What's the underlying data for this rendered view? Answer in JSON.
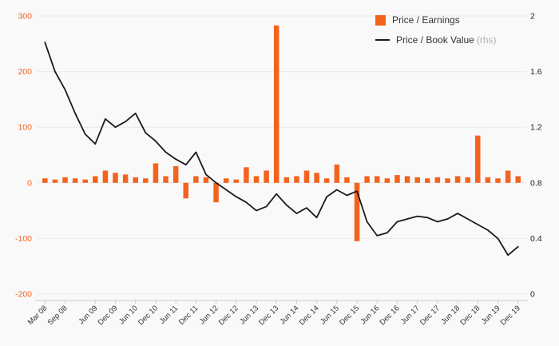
{
  "colors": {
    "bar": "#f4631e",
    "line": "#1a1a1a",
    "grid": "#e9e9e9",
    "axis": "#cccccc",
    "left_tick_text": "#f4631e",
    "right_tick_text": "#222222",
    "x_tick_text": "#333333",
    "background": "#f9f9f9"
  },
  "legend": {
    "pe_label": "Price / Earnings",
    "pb_label": "Price / Book Value",
    "rhs_label": "(rhs)"
  },
  "chart_data": {
    "type": "bar",
    "title": "",
    "xlabel": "",
    "ylabel_left": "",
    "ylabel_right": "",
    "grid": true,
    "legend_position": "top-right",
    "x": [
      "Mar 08",
      "Jun 08",
      "Sep 08",
      "Dec 08",
      "Mar 09",
      "Jun 09",
      "Sep 09",
      "Dec 09",
      "Mar 10",
      "Jun 10",
      "Sep 10",
      "Dec 10",
      "Mar 11",
      "Jun 11",
      "Sep 11",
      "Dec 11",
      "Mar 12",
      "Jun 12",
      "Sep 12",
      "Dec 12",
      "Mar 13",
      "Jun 13",
      "Sep 13",
      "Dec 13",
      "Mar 14",
      "Jun 14",
      "Sep 14",
      "Dec 14",
      "Mar 15",
      "Jun 15",
      "Sep 15",
      "Dec 15",
      "Mar 16",
      "Jun 16",
      "Sep 16",
      "Dec 16",
      "Mar 17",
      "Jun 17",
      "Sep 17",
      "Dec 17",
      "Mar 18",
      "Jun 18",
      "Sep 18",
      "Dec 18",
      "Mar 19",
      "Jun 19",
      "Sep 19",
      "Dec 19"
    ],
    "x_tick_labels": [
      "Mar 08",
      "Sep 08",
      "Jun 09",
      "Dec 09",
      "Jun 10",
      "Dec 10",
      "Jun 11",
      "Dec 11",
      "Jun 12",
      "Dec 12",
      "Jun 13",
      "Dec 13",
      "Jun 14",
      "Dec 14",
      "Jun 15",
      "Dec 15",
      "Jun 16",
      "Dec 16",
      "Jun 17",
      "Dec 17",
      "Jun 18",
      "Dec 18",
      "Jun 19",
      "Dec 19"
    ],
    "x_tick_indices": [
      0,
      2,
      5,
      7,
      9,
      11,
      13,
      15,
      17,
      19,
      21,
      23,
      25,
      27,
      29,
      31,
      33,
      35,
      37,
      39,
      41,
      43,
      45,
      47
    ],
    "series": [
      {
        "name": "Price / Earnings",
        "type": "bar",
        "axis": "left",
        "color": "#f4631e",
        "values": [
          8,
          6,
          10,
          8,
          6,
          12,
          22,
          18,
          15,
          10,
          8,
          35,
          12,
          30,
          -28,
          12,
          10,
          -35,
          8,
          6,
          28,
          12,
          22,
          283,
          10,
          12,
          22,
          18,
          8,
          33,
          10,
          -105,
          12,
          12,
          8,
          14,
          12,
          10,
          8,
          10,
          8,
          12,
          10,
          85,
          10,
          8,
          22,
          12
        ]
      },
      {
        "name": "Price / Book Value (rhs)",
        "type": "line",
        "axis": "right",
        "color": "#1a1a1a",
        "values": [
          1.81,
          1.6,
          1.47,
          1.3,
          1.15,
          1.08,
          1.26,
          1.2,
          1.24,
          1.3,
          1.16,
          1.1,
          1.02,
          0.97,
          0.93,
          1.02,
          0.86,
          0.8,
          0.75,
          0.7,
          0.66,
          0.6,
          0.63,
          0.72,
          0.64,
          0.58,
          0.62,
          0.55,
          0.7,
          0.75,
          0.71,
          0.74,
          0.52,
          0.42,
          0.44,
          0.52,
          0.54,
          0.56,
          0.55,
          0.52,
          0.54,
          0.58,
          0.54,
          0.5,
          0.46,
          0.4,
          0.28,
          0.34
        ]
      }
    ],
    "left_axis": {
      "min": -200,
      "max": 300,
      "tick_labels": [
        "300",
        "200",
        "100",
        "0",
        "-100",
        "-200"
      ],
      "ticks": [
        300,
        200,
        100,
        0,
        -100,
        -200
      ]
    },
    "right_axis": {
      "min": 0,
      "max": 2,
      "tick_labels": [
        "2",
        "1.6",
        "1.2",
        "0.8",
        "0.4",
        "0"
      ],
      "ticks": [
        2,
        1.6,
        1.2,
        0.8,
        0.4,
        0
      ]
    }
  }
}
